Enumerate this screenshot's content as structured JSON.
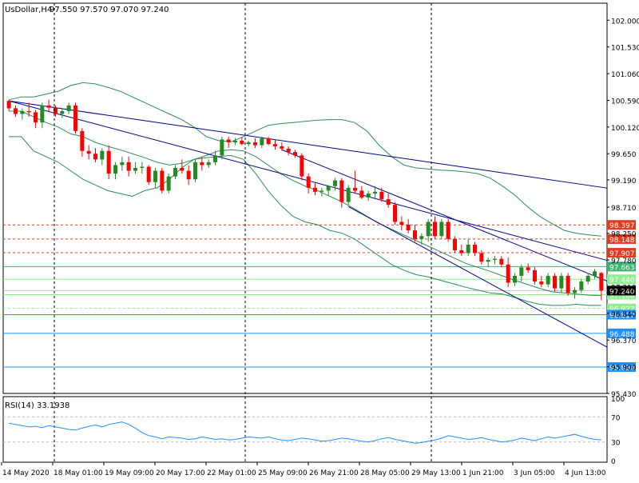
{
  "header": {
    "symbol_label": "UsDollar,H4",
    "ohlc_label": "97.550 97.570 97.070 97.240"
  },
  "rsi_panel": {
    "label": "RSI(14) 33.1938",
    "levels": [
      "70",
      "30"
    ],
    "scale_labels": [
      "100",
      "70",
      "30",
      "0"
    ]
  },
  "chart_data": {
    "type": "candlestick",
    "symbol": "UsDollar",
    "timeframe": "H4",
    "ylim": [
      95.43,
      102.3
    ],
    "y_ticks": [
      "102.000",
      "101.530",
      "101.060",
      "100.590",
      "100.120",
      "99.650",
      "99.190",
      "98.710",
      "98.250",
      "97.780",
      "97.310",
      "96.840",
      "96.370",
      "95.900",
      "95.430"
    ],
    "x_labels": [
      "14 May 2020",
      "18 May 01:00",
      "19 May 09:00",
      "20 May 17:00",
      "22 May 01:00",
      "25 May 09:00",
      "26 May 21:00",
      "28 May 05:00",
      "29 May 13:00",
      "1 Jun 21:00",
      "3 Jun 05:00",
      "4 Jun 13:00"
    ],
    "candles": [
      [
        100.58,
        100.6,
        100.4,
        100.45
      ],
      [
        100.45,
        100.5,
        100.3,
        100.35
      ],
      [
        100.35,
        100.45,
        100.25,
        100.4
      ],
      [
        100.4,
        100.55,
        100.3,
        100.38
      ],
      [
        100.38,
        100.42,
        100.1,
        100.2
      ],
      [
        100.2,
        100.55,
        100.1,
        100.5
      ],
      [
        100.5,
        100.6,
        100.4,
        100.46
      ],
      [
        100.46,
        100.5,
        100.3,
        100.35
      ],
      [
        100.35,
        100.45,
        100.28,
        100.4
      ],
      [
        100.4,
        100.55,
        100.35,
        100.5
      ],
      [
        100.5,
        100.55,
        100.0,
        100.05
      ],
      [
        100.05,
        100.1,
        99.6,
        99.7
      ],
      [
        99.7,
        99.8,
        99.55,
        99.65
      ],
      [
        99.65,
        99.75,
        99.5,
        99.55
      ],
      [
        99.55,
        99.75,
        99.45,
        99.7
      ],
      [
        99.7,
        99.8,
        99.2,
        99.3
      ],
      [
        99.3,
        99.5,
        99.2,
        99.45
      ],
      [
        99.45,
        99.6,
        99.35,
        99.5
      ],
      [
        99.5,
        99.6,
        99.25,
        99.35
      ],
      [
        99.35,
        99.5,
        99.3,
        99.4
      ],
      [
        99.4,
        99.5,
        99.3,
        99.42
      ],
      [
        99.42,
        99.45,
        99.1,
        99.15
      ],
      [
        99.15,
        99.4,
        99.05,
        99.35
      ],
      [
        99.35,
        99.4,
        98.95,
        99.0
      ],
      [
        99.0,
        99.3,
        98.95,
        99.25
      ],
      [
        99.25,
        99.45,
        99.2,
        99.4
      ],
      [
        99.4,
        99.55,
        99.3,
        99.35
      ],
      [
        99.35,
        99.45,
        99.1,
        99.2
      ],
      [
        99.2,
        99.55,
        99.15,
        99.5
      ],
      [
        99.5,
        99.6,
        99.35,
        99.45
      ],
      [
        99.45,
        99.55,
        99.4,
        99.5
      ],
      [
        99.5,
        99.7,
        99.45,
        99.62
      ],
      [
        99.62,
        99.95,
        99.55,
        99.9
      ],
      [
        99.9,
        99.95,
        99.75,
        99.85
      ],
      [
        99.85,
        99.92,
        99.8,
        99.88
      ],
      [
        99.88,
        99.95,
        99.8,
        99.82
      ],
      [
        99.82,
        99.88,
        99.78,
        99.85
      ],
      [
        99.85,
        99.92,
        99.75,
        99.8
      ],
      [
        99.8,
        99.95,
        99.75,
        99.92
      ],
      [
        99.92,
        99.95,
        99.8,
        99.82
      ],
      [
        99.82,
        99.9,
        99.72,
        99.78
      ],
      [
        99.78,
        99.85,
        99.7,
        99.74
      ],
      [
        99.74,
        99.78,
        99.62,
        99.68
      ],
      [
        99.68,
        99.72,
        99.58,
        99.62
      ],
      [
        99.62,
        99.66,
        99.18,
        99.25
      ],
      [
        99.25,
        99.3,
        98.95,
        99.05
      ],
      [
        99.05,
        99.15,
        98.92,
        98.98
      ],
      [
        98.98,
        99.05,
        98.9,
        99.0
      ],
      [
        99.0,
        99.1,
        98.92,
        99.08
      ],
      [
        99.08,
        99.22,
        99.0,
        99.18
      ],
      [
        99.18,
        99.22,
        98.7,
        98.8
      ],
      [
        98.8,
        99.1,
        98.75,
        99.05
      ],
      [
        99.05,
        99.35,
        98.95,
        99.0
      ],
      [
        99.0,
        99.08,
        98.85,
        98.88
      ],
      [
        98.88,
        99.0,
        98.82,
        98.95
      ],
      [
        98.95,
        99.08,
        98.85,
        98.98
      ],
      [
        98.98,
        99.05,
        98.8,
        98.85
      ],
      [
        98.85,
        98.95,
        98.7,
        98.75
      ],
      [
        98.75,
        98.8,
        98.4,
        98.45
      ],
      [
        98.45,
        98.55,
        98.3,
        98.4
      ],
      [
        98.4,
        98.5,
        98.25,
        98.3
      ],
      [
        98.3,
        98.4,
        98.1,
        98.15
      ],
      [
        98.15,
        98.25,
        98.05,
        98.2
      ],
      [
        98.2,
        98.5,
        98.1,
        98.45
      ],
      [
        98.45,
        98.55,
        98.15,
        98.2
      ],
      [
        98.2,
        98.5,
        98.15,
        98.45
      ],
      [
        98.45,
        98.5,
        98.1,
        98.15
      ],
      [
        98.15,
        98.2,
        97.9,
        97.95
      ],
      [
        97.95,
        98.05,
        97.85,
        97.9
      ],
      [
        97.9,
        98.15,
        97.85,
        98.05
      ],
      [
        98.05,
        98.1,
        97.85,
        97.9
      ],
      [
        97.9,
        97.95,
        97.7,
        97.75
      ],
      [
        97.75,
        97.82,
        97.65,
        97.78
      ],
      [
        97.78,
        97.85,
        97.7,
        97.8
      ],
      [
        97.8,
        97.85,
        97.65,
        97.7
      ],
      [
        97.7,
        97.82,
        97.3,
        97.38
      ],
      [
        97.38,
        97.55,
        97.32,
        97.5
      ],
      [
        97.5,
        97.7,
        97.4,
        97.65
      ],
      [
        97.65,
        97.72,
        97.55,
        97.6
      ],
      [
        97.6,
        97.65,
        97.35,
        97.4
      ],
      [
        97.4,
        97.5,
        97.3,
        97.35
      ],
      [
        97.35,
        97.55,
        97.3,
        97.5
      ],
      [
        97.5,
        97.55,
        97.22,
        97.28
      ],
      [
        97.28,
        97.55,
        97.2,
        97.5
      ],
      [
        97.5,
        97.55,
        97.15,
        97.2
      ],
      [
        97.2,
        97.3,
        97.1,
        97.25
      ],
      [
        97.25,
        97.45,
        97.2,
        97.4
      ],
      [
        97.4,
        97.55,
        97.35,
        97.5
      ],
      [
        97.5,
        97.62,
        97.45,
        97.58
      ],
      [
        97.55,
        97.57,
        97.07,
        97.24
      ]
    ],
    "bollinger": {
      "upper": [
        100.6,
        100.65,
        100.65,
        100.7,
        100.75,
        100.85,
        100.9,
        100.88,
        100.82,
        100.75,
        100.65,
        100.55,
        100.45,
        100.35,
        100.25,
        100.12,
        99.95,
        99.88,
        99.86,
        99.95,
        100.05,
        100.15,
        100.18,
        100.2,
        100.22,
        100.24,
        100.25,
        100.25,
        100.2,
        100.05,
        99.8,
        99.6,
        99.45,
        99.4,
        99.38,
        99.36,
        99.35,
        99.33,
        99.3,
        99.22,
        99.08,
        98.92,
        98.72,
        98.55,
        98.42,
        98.3,
        98.25,
        98.22,
        98.2
      ],
      "middle": [
        100.4,
        100.4,
        100.3,
        100.2,
        100.12,
        100.0,
        99.95,
        99.85,
        99.78,
        99.72,
        99.65,
        99.58,
        99.5,
        99.45,
        99.48,
        99.55,
        99.62,
        99.7,
        99.72,
        99.7,
        99.6,
        99.45,
        99.3,
        99.18,
        99.08,
        99.0,
        98.9,
        98.8,
        98.68,
        98.55,
        98.42,
        98.32,
        98.22,
        98.12,
        98.02,
        97.92,
        97.82,
        97.72,
        97.65,
        97.58,
        97.5,
        97.42,
        97.35,
        97.28,
        97.22,
        97.2,
        97.18,
        97.16,
        97.15
      ],
      "lower": [
        99.95,
        99.95,
        99.7,
        99.6,
        99.5,
        99.35,
        99.2,
        99.1,
        99.0,
        98.95,
        98.9,
        99.0,
        99.05,
        99.2,
        99.4,
        99.55,
        99.58,
        99.6,
        99.62,
        99.55,
        99.3,
        99.0,
        98.75,
        98.55,
        98.45,
        98.4,
        98.3,
        98.25,
        98.15,
        98.0,
        97.85,
        97.7,
        97.6,
        97.52,
        97.48,
        97.42,
        97.36,
        97.3,
        97.25,
        97.2,
        97.18,
        97.12,
        97.05,
        97.0,
        96.98,
        96.98,
        97.0,
        96.98,
        96.98
      ]
    },
    "trendlines": [
      {
        "from": [
          0,
          100.58
        ],
        "to": [
          89,
          99.06
        ],
        "color": "#00008b"
      },
      {
        "from": [
          0,
          100.58
        ],
        "to": [
          89,
          97.8
        ],
        "color": "#00008b"
      },
      {
        "from": [
          41,
          99.72
        ],
        "to": [
          89,
          97.45
        ],
        "color": "#00008b"
      },
      {
        "from": [
          51,
          98.72
        ],
        "to": [
          89,
          96.3
        ],
        "color": "#00008b"
      }
    ],
    "levels": [
      {
        "label": "98.397",
        "value": 98.397,
        "color": "#e03c1f",
        "style": "dashed"
      },
      {
        "label": "98.148",
        "value": 98.148,
        "color": "#e03c1f",
        "style": "dashed"
      },
      {
        "label": "97.907",
        "value": 97.907,
        "color": "#e03c1f",
        "style": "dashed"
      },
      {
        "label": "97.663",
        "value": 97.663,
        "color": "#3cb371",
        "style": "solid"
      },
      {
        "label": "97.440",
        "value": 97.44,
        "color": "#90ee90",
        "style": "solid"
      },
      {
        "label": "97.168",
        "value": 97.168,
        "color": "#90ee90",
        "style": "solid"
      },
      {
        "label": "96.927",
        "value": 96.927,
        "color": "#90ee90",
        "style": "dashed"
      },
      {
        "label": "96.817",
        "value": 96.817,
        "color": "#1e90ff",
        "style": "solid"
      },
      {
        "label": "96.488",
        "value": 96.488,
        "color": "#1e90ff",
        "style": "solid"
      },
      {
        "label": "95.894",
        "value": 95.894,
        "color": "#1e90ff",
        "style": "solid"
      }
    ],
    "current_price": {
      "label": "97.240",
      "value": 97.24
    },
    "separators": [
      12,
      64,
      144
    ],
    "rsi": {
      "ylim": [
        0,
        100
      ],
      "values": [
        60,
        58,
        56,
        54,
        55,
        53,
        56,
        54,
        52,
        50,
        49,
        52,
        55,
        57,
        54,
        58,
        60,
        62,
        58,
        52,
        45,
        40,
        38,
        35,
        38,
        37,
        36,
        34,
        35,
        38,
        36,
        34,
        35,
        33,
        34,
        36,
        38,
        37,
        36,
        38,
        35,
        33,
        32,
        34,
        36,
        35,
        33,
        31,
        32,
        34,
        36,
        35,
        33,
        31,
        30,
        32,
        35,
        37,
        34,
        32,
        30,
        28,
        29,
        31,
        33,
        36,
        40,
        38,
        36,
        34,
        35,
        37,
        34,
        32,
        30,
        31,
        33,
        36,
        34,
        32,
        35,
        38,
        36,
        38,
        40,
        42,
        39,
        36,
        34,
        33.19
      ],
      "color": "#1e90ff"
    },
    "colors": {
      "bull": "#228b22",
      "bear": "#ff0000",
      "bands": "#2e8b57",
      "grid": "#000000"
    }
  }
}
